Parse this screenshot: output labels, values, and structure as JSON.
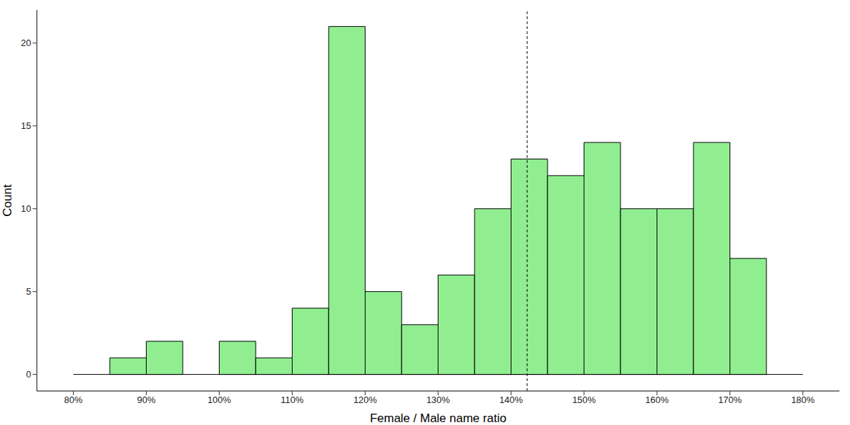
{
  "chart_data": {
    "type": "histogram",
    "x_label": "Female / Male name ratio",
    "y_label": "Count",
    "bins": [
      80,
      85,
      90,
      95,
      100,
      105,
      110,
      115,
      120,
      125,
      130,
      135,
      140,
      145,
      150,
      155,
      160,
      165,
      170,
      175,
      180
    ],
    "counts": [
      0,
      1,
      2,
      0,
      2,
      1,
      4,
      21,
      5,
      3,
      6,
      10,
      13,
      12,
      14,
      10,
      10,
      14,
      7,
      0
    ],
    "color": "#90ee90",
    "vline": 142.2,
    "line_style": "dashed",
    "xlim": [
      75,
      185
    ],
    "xticks": [
      {
        "value": 80,
        "label": "80%"
      },
      {
        "value": 90,
        "label": "90%"
      },
      {
        "value": 100,
        "label": "100%"
      },
      {
        "value": 110,
        "label": "110%"
      },
      {
        "value": 120,
        "label": "120%"
      },
      {
        "value": 130,
        "label": "130%"
      },
      {
        "value": 140,
        "label": "140%"
      },
      {
        "value": 150,
        "label": "150%"
      },
      {
        "value": 160,
        "label": "160%"
      },
      {
        "value": 170,
        "label": "170%"
      },
      {
        "value": 180,
        "label": "180%"
      }
    ],
    "ylim": [
      -1,
      22
    ],
    "yticks": [
      0,
      5,
      10,
      15,
      20
    ],
    "grid": false
  }
}
